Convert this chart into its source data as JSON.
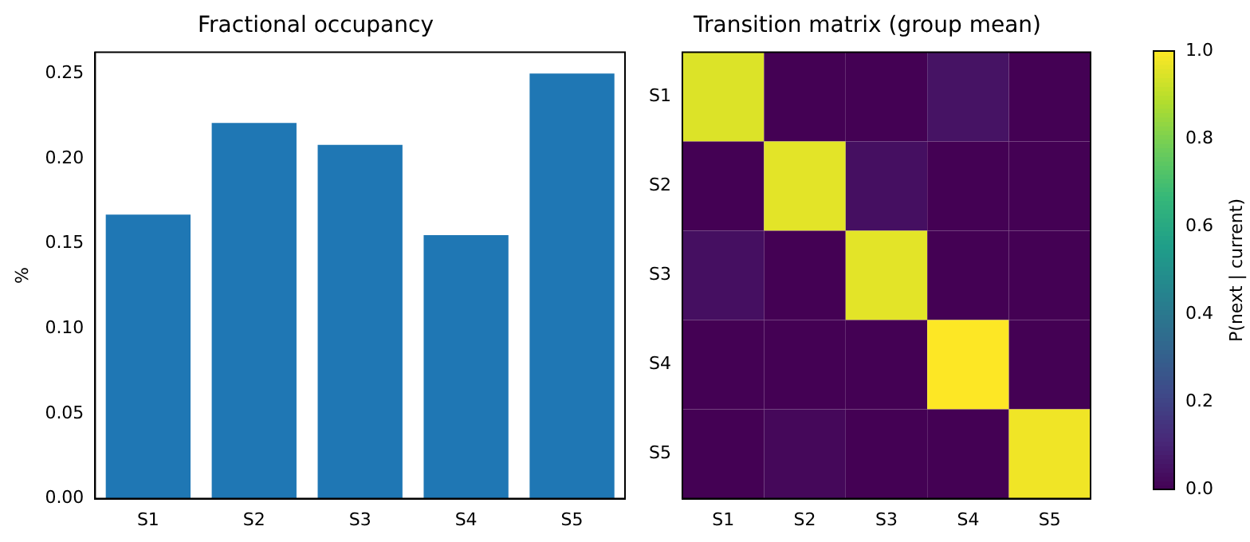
{
  "chart_data": [
    {
      "type": "bar",
      "title": "Fractional occupancy",
      "ylabel": "%",
      "categories": [
        "S1",
        "S2",
        "S3",
        "S4",
        "S5"
      ],
      "values": [
        0.167,
        0.221,
        0.208,
        0.155,
        0.25
      ],
      "color": "#1f77b4",
      "ylim": [
        0,
        0.2625
      ],
      "yticks": [
        {
          "value": 0,
          "label": "0.00"
        },
        {
          "value": 0.05,
          "label": "0.05"
        },
        {
          "value": 0.1,
          "label": "0.10"
        },
        {
          "value": 0.15,
          "label": "0.15"
        },
        {
          "value": 0.2,
          "label": "0.20"
        },
        {
          "value": 0.25,
          "label": "0.25"
        }
      ],
      "grid": false
    },
    {
      "type": "heatmap",
      "title": "Transition matrix (group mean)",
      "clabel": "P(next | current)",
      "categories": [
        "S1",
        "S2",
        "S3",
        "S4",
        "S5"
      ],
      "y_categories": [
        "S1",
        "S2",
        "S3",
        "S4",
        "S5"
      ],
      "cells": [
        [
          0.95,
          0,
          0,
          0.05,
          0
        ],
        [
          0,
          0.96,
          0.04,
          0,
          0
        ],
        [
          0.04,
          0,
          0.96,
          0,
          0
        ],
        [
          0,
          0,
          0,
          1.0,
          0
        ],
        [
          0,
          0.02,
          0,
          0,
          0.98
        ]
      ],
      "clim": [
        0,
        1
      ],
      "cticks": [
        {
          "value": 0,
          "label": "0.0"
        },
        {
          "value": 0.2,
          "label": "0.2"
        },
        {
          "value": 0.4,
          "label": "0.4"
        },
        {
          "value": 0.6,
          "label": "0.6"
        },
        {
          "value": 0.8,
          "label": "0.8"
        },
        {
          "value": 1,
          "label": "1.0"
        }
      ],
      "grid": false
    }
  ]
}
